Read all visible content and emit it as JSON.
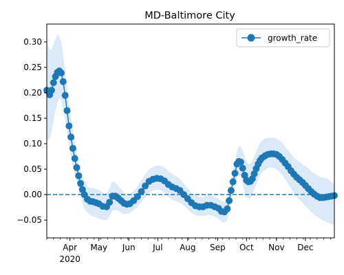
{
  "chart_data": {
    "type": "line",
    "title": "MD-Baltimore City",
    "xlabel": "",
    "ylabel": "",
    "x_range": [
      "2020-03-08",
      "2020-12-31"
    ],
    "ylim": [
      -0.085,
      0.335
    ],
    "y_ticks": [
      -0.05,
      0.0,
      0.05,
      0.1,
      0.15,
      0.2,
      0.25,
      0.3
    ],
    "y_tick_labels": [
      "−0.05",
      "0.00",
      "0.05",
      "0.10",
      "0.15",
      "0.20",
      "0.25",
      "0.30"
    ],
    "x_ticks": [
      {
        "date": "2020-04-01",
        "label": "Apr"
      },
      {
        "date": "2020-05-01",
        "label": "May"
      },
      {
        "date": "2020-06-01",
        "label": "Jun"
      },
      {
        "date": "2020-07-01",
        "label": "Jul"
      },
      {
        "date": "2020-08-01",
        "label": "Aug"
      },
      {
        "date": "2020-09-01",
        "label": "Sep"
      },
      {
        "date": "2020-10-01",
        "label": "Oct"
      },
      {
        "date": "2020-11-01",
        "label": "Nov"
      },
      {
        "date": "2020-12-01",
        "label": "Dec"
      }
    ],
    "year_label": {
      "date": "2020-04-01",
      "label": "2020"
    },
    "grid": false,
    "legend": {
      "position": "upper right"
    },
    "reference_line": {
      "y": 0,
      "style": "dashed"
    },
    "series": [
      {
        "name": "growth_rate",
        "color": "#1f77b4",
        "band_color": "#dce9f6",
        "marker": "circle",
        "x": [
          "2020-03-08",
          "2020-03-11",
          "2020-03-13",
          "2020-03-15",
          "2020-03-17",
          "2020-03-19",
          "2020-03-21",
          "2020-03-23",
          "2020-03-25",
          "2020-03-27",
          "2020-03-29",
          "2020-03-31",
          "2020-04-02",
          "2020-04-04",
          "2020-04-06",
          "2020-04-08",
          "2020-04-10",
          "2020-04-12",
          "2020-04-14",
          "2020-04-16",
          "2020-04-19",
          "2020-04-22",
          "2020-04-25",
          "2020-04-28",
          "2020-05-01",
          "2020-05-05",
          "2020-05-09",
          "2020-05-12",
          "2020-05-15",
          "2020-05-18",
          "2020-05-21",
          "2020-05-24",
          "2020-05-27",
          "2020-05-30",
          "2020-06-02",
          "2020-06-06",
          "2020-06-10",
          "2020-06-14",
          "2020-06-18",
          "2020-06-22",
          "2020-06-26",
          "2020-06-30",
          "2020-07-04",
          "2020-07-08",
          "2020-07-12",
          "2020-07-16",
          "2020-07-20",
          "2020-07-24",
          "2020-07-28",
          "2020-08-01",
          "2020-08-05",
          "2020-08-09",
          "2020-08-13",
          "2020-08-17",
          "2020-08-21",
          "2020-08-25",
          "2020-08-29",
          "2020-09-02",
          "2020-09-05",
          "2020-09-08",
          "2020-09-11",
          "2020-09-13",
          "2020-09-15",
          "2020-09-17",
          "2020-09-19",
          "2020-09-21",
          "2020-09-23",
          "2020-09-25",
          "2020-09-27",
          "2020-09-29",
          "2020-10-01",
          "2020-10-03",
          "2020-10-05",
          "2020-10-07",
          "2020-10-09",
          "2020-10-11",
          "2020-10-13",
          "2020-10-15",
          "2020-10-17",
          "2020-10-20",
          "2020-10-23",
          "2020-10-26",
          "2020-10-29",
          "2020-11-01",
          "2020-11-04",
          "2020-11-07",
          "2020-11-10",
          "2020-11-13",
          "2020-11-16",
          "2020-11-19",
          "2020-11-22",
          "2020-11-25",
          "2020-11-28",
          "2020-12-01",
          "2020-12-04",
          "2020-12-07",
          "2020-12-10",
          "2020-12-13",
          "2020-12-16",
          "2020-12-19",
          "2020-12-22",
          "2020-12-25",
          "2020-12-28",
          "2020-12-31"
        ],
        "y": [
          0.205,
          0.196,
          0.205,
          0.22,
          0.232,
          0.24,
          0.243,
          0.239,
          0.222,
          0.195,
          0.165,
          0.135,
          0.113,
          0.091,
          0.071,
          0.053,
          0.037,
          0.022,
          0.01,
          0.0,
          -0.009,
          -0.013,
          -0.014,
          -0.016,
          -0.018,
          -0.023,
          -0.024,
          -0.015,
          -0.003,
          -0.003,
          -0.007,
          -0.012,
          -0.017,
          -0.019,
          -0.018,
          -0.012,
          -0.004,
          0.006,
          0.017,
          0.026,
          0.03,
          0.032,
          0.031,
          0.027,
          0.02,
          0.015,
          0.012,
          0.008,
          0.0,
          -0.008,
          -0.016,
          -0.022,
          -0.024,
          -0.024,
          -0.021,
          -0.021,
          -0.024,
          -0.027,
          -0.033,
          -0.034,
          -0.028,
          -0.012,
          0.008,
          0.025,
          0.042,
          0.06,
          0.065,
          0.064,
          0.052,
          0.038,
          0.028,
          0.025,
          0.026,
          0.031,
          0.041,
          0.051,
          0.06,
          0.067,
          0.072,
          0.076,
          0.079,
          0.08,
          0.08,
          0.079,
          0.075,
          0.069,
          0.062,
          0.055,
          0.047,
          0.04,
          0.034,
          0.029,
          0.024,
          0.018,
          0.012,
          0.006,
          0.001,
          -0.003,
          -0.006,
          -0.006,
          -0.005,
          -0.004,
          -0.003,
          -0.002
        ],
        "lower": [
          0.105,
          0.11,
          0.125,
          0.145,
          0.165,
          0.18,
          0.19,
          0.185,
          0.17,
          0.145,
          0.12,
          0.095,
          0.075,
          0.055,
          0.04,
          0.025,
          0.01,
          -0.005,
          -0.018,
          -0.028,
          -0.035,
          -0.04,
          -0.042,
          -0.045,
          -0.047,
          -0.05,
          -0.05,
          -0.043,
          -0.032,
          -0.03,
          -0.032,
          -0.035,
          -0.038,
          -0.038,
          -0.036,
          -0.031,
          -0.024,
          -0.015,
          -0.005,
          0.004,
          0.008,
          0.01,
          0.009,
          0.004,
          -0.004,
          -0.01,
          -0.013,
          -0.016,
          -0.022,
          -0.029,
          -0.036,
          -0.04,
          -0.042,
          -0.042,
          -0.04,
          -0.04,
          -0.043,
          -0.047,
          -0.054,
          -0.055,
          -0.05,
          -0.035,
          -0.015,
          0.003,
          0.02,
          0.035,
          0.04,
          0.035,
          0.02,
          0.005,
          -0.005,
          -0.008,
          -0.006,
          0.0,
          0.01,
          0.02,
          0.03,
          0.038,
          0.043,
          0.048,
          0.052,
          0.053,
          0.052,
          0.05,
          0.045,
          0.038,
          0.03,
          0.022,
          0.013,
          0.004,
          -0.004,
          -0.01,
          -0.016,
          -0.022,
          -0.028,
          -0.034,
          -0.039,
          -0.043,
          -0.047,
          -0.05,
          -0.053,
          -0.056,
          -0.058,
          -0.06
        ],
        "upper": [
          0.3,
          0.285,
          0.285,
          0.295,
          0.305,
          0.315,
          0.312,
          0.3,
          0.275,
          0.245,
          0.212,
          0.178,
          0.153,
          0.128,
          0.104,
          0.083,
          0.065,
          0.049,
          0.037,
          0.027,
          0.017,
          0.013,
          0.013,
          0.011,
          0.009,
          0.004,
          0.002,
          0.013,
          0.026,
          0.024,
          0.017,
          0.011,
          0.004,
          0.001,
          0.001,
          0.007,
          0.016,
          0.028,
          0.04,
          0.05,
          0.054,
          0.057,
          0.057,
          0.053,
          0.046,
          0.04,
          0.036,
          0.031,
          0.022,
          0.013,
          0.004,
          -0.002,
          -0.004,
          -0.004,
          -0.002,
          -0.002,
          -0.005,
          -0.008,
          -0.013,
          -0.013,
          -0.005,
          0.012,
          0.032,
          0.048,
          0.066,
          0.085,
          0.095,
          0.095,
          0.087,
          0.075,
          0.064,
          0.06,
          0.061,
          0.066,
          0.075,
          0.085,
          0.094,
          0.101,
          0.106,
          0.11,
          0.112,
          0.112,
          0.112,
          0.11,
          0.107,
          0.101,
          0.095,
          0.088,
          0.08,
          0.073,
          0.068,
          0.064,
          0.06,
          0.056,
          0.051,
          0.046,
          0.042,
          0.038,
          0.035,
          0.033,
          0.033,
          0.03,
          0.025,
          0.02
        ]
      }
    ]
  }
}
